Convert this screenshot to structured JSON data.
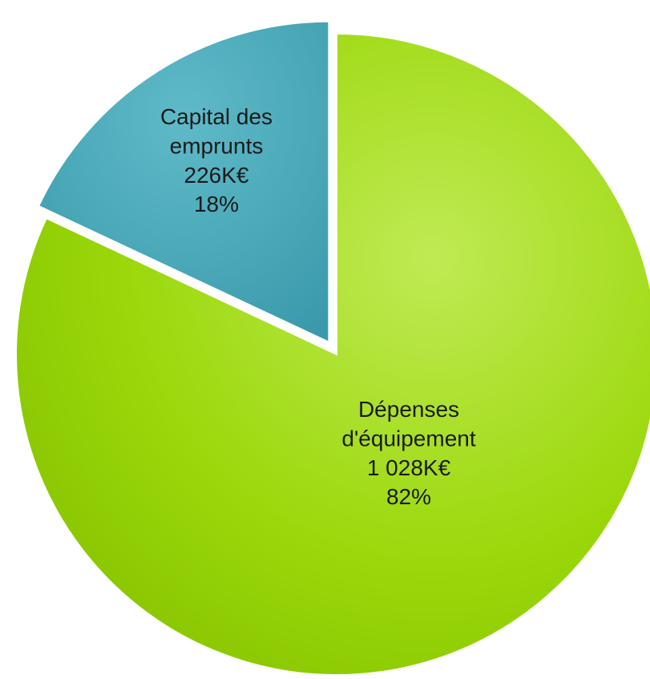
{
  "chart_data": {
    "type": "pie",
    "title": "",
    "slices": [
      {
        "label_lines": [
          "Dépenses",
          "d'équipement",
          "1 028K€",
          "82%"
        ],
        "category": "Dépenses d'équipement",
        "value": 1028,
        "unit": "K€",
        "percent": 82,
        "color": "#96d400",
        "color_light": "#b4e63a",
        "exploded": false
      },
      {
        "label_lines": [
          "Capital des",
          "emprunts",
          "226K€",
          "18%"
        ],
        "category": "Capital des emprunts",
        "value": 226,
        "unit": "K€",
        "percent": 18,
        "color": "#3fa6b8",
        "color_light": "#74c3cf",
        "exploded": true
      }
    ]
  }
}
